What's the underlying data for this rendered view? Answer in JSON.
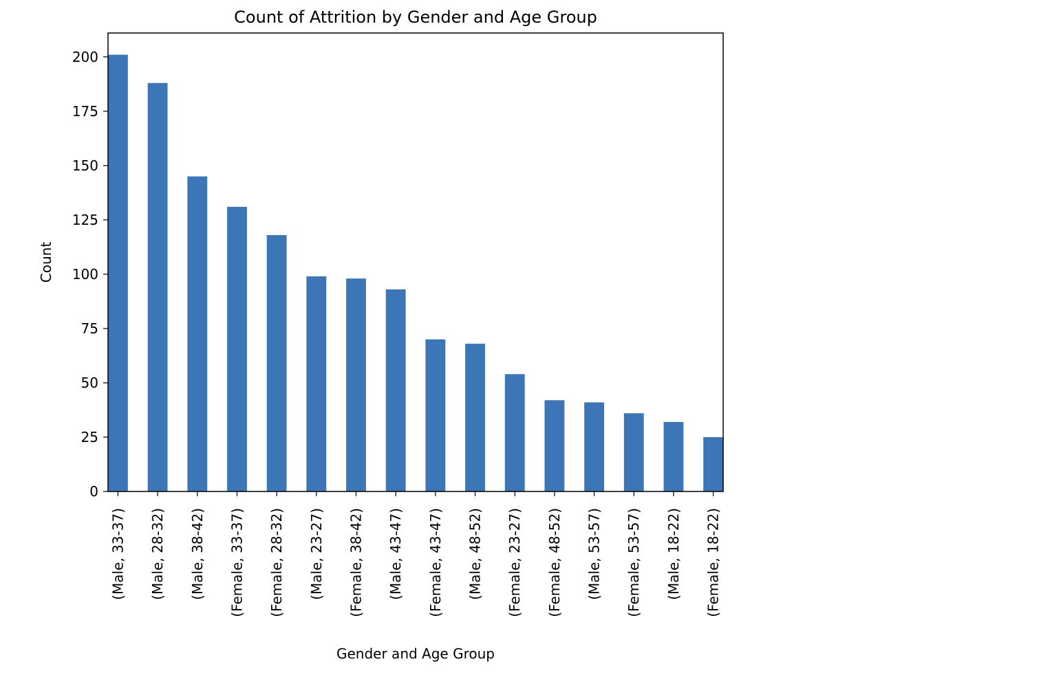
{
  "chart_data": {
    "type": "bar",
    "title": "Count of Attrition by Gender and Age Group",
    "xlabel": "Gender and Age Group",
    "ylabel": "Count",
    "categories": [
      "(Male, 33-37)",
      "(Male, 28-32)",
      "(Male, 38-42)",
      "(Female, 33-37)",
      "(Female, 28-32)",
      "(Male, 23-27)",
      "(Female, 38-42)",
      "(Male, 43-47)",
      "(Female, 43-47)",
      "(Male, 48-52)",
      "(Female, 23-27)",
      "(Female, 48-52)",
      "(Male, 53-57)",
      "(Female, 53-57)",
      "(Male, 18-22)",
      "(Female, 18-22)"
    ],
    "values": [
      201,
      188,
      145,
      131,
      118,
      99,
      98,
      93,
      70,
      68,
      54,
      42,
      41,
      36,
      32,
      25
    ],
    "ylim": [
      0,
      211
    ],
    "yticks": [
      0,
      25,
      50,
      75,
      100,
      125,
      150,
      175,
      200
    ],
    "grid": false,
    "bar_color": "#3d76b6"
  }
}
